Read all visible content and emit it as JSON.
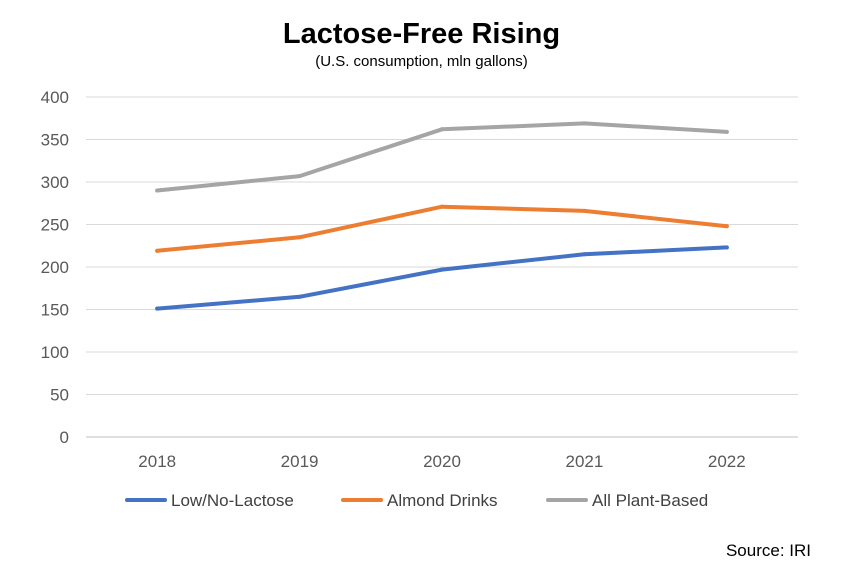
{
  "chart_data": {
    "type": "line",
    "title": "Lactose-Free Rising",
    "subtitle": "(U.S. consumption, mln gallons)",
    "categories": [
      "2018",
      "2019",
      "2020",
      "2021",
      "2022"
    ],
    "ylim": [
      0,
      400
    ],
    "yticks": [
      0,
      50,
      100,
      150,
      200,
      250,
      300,
      350,
      400
    ],
    "grid": true,
    "legend_position": "bottom",
    "series": [
      {
        "name": "Low/No-Lactose",
        "color": "#4472C4",
        "values": [
          151,
          165,
          197,
          215,
          223
        ]
      },
      {
        "name": "Almond Drinks",
        "color": "#ED7D31",
        "values": [
          219,
          235,
          271,
          266,
          248
        ]
      },
      {
        "name": "All Plant-Based",
        "color": "#A5A5A5",
        "values": [
          290,
          307,
          362,
          369,
          359
        ]
      }
    ],
    "source": "Source: IRI"
  }
}
